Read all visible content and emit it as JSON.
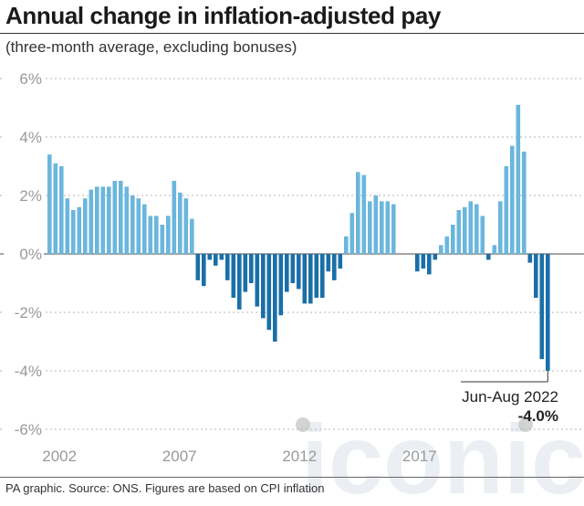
{
  "title": "Annual change in inflation-adjusted pay",
  "subtitle": "(three-month average, excluding bonuses)",
  "source": "PA graphic. Source: ONS. Figures are based on CPI inflation",
  "watermark": "iconic",
  "colors": {
    "positive": "#6bb6dc",
    "negative": "#1a6fa8",
    "gridline": "#b5b5b5",
    "zero_line": "#6d6d6d",
    "tick_text": "#999999",
    "watermark": "#dce3ea"
  },
  "chart_data": {
    "type": "bar",
    "title": "Annual change in inflation-adjusted pay",
    "subtitle": "(three-month average, excluding bonuses)",
    "xlabel": "",
    "ylabel": "",
    "ylim": [
      -6,
      6
    ],
    "y_ticks": [
      6,
      4,
      2,
      0,
      -2,
      -4,
      -6
    ],
    "y_tick_labels": [
      "6%",
      "4%",
      "2%",
      "0%",
      "-2%",
      "-4%",
      "-6%"
    ],
    "x_tick_labels": [
      "2002",
      "2007",
      "2012",
      "2017"
    ],
    "grid": true,
    "period_start": 2001.5,
    "period_end": 2022.5,
    "values": [
      3.4,
      3.1,
      3.0,
      1.9,
      1.5,
      1.6,
      1.9,
      2.2,
      2.3,
      2.3,
      2.3,
      2.5,
      2.5,
      2.3,
      2.0,
      1.9,
      1.7,
      1.3,
      1.3,
      1.0,
      1.3,
      2.5,
      2.1,
      1.9,
      1.2,
      -0.9,
      -1.1,
      -0.2,
      -0.4,
      -0.2,
      -0.9,
      -1.5,
      -1.9,
      -1.3,
      -1.0,
      -1.8,
      -2.2,
      -2.6,
      -3.0,
      -2.1,
      -1.3,
      -1.0,
      -1.2,
      -1.7,
      -1.7,
      -1.5,
      -1.5,
      -0.6,
      -0.9,
      -0.5,
      0.6,
      1.4,
      2.8,
      2.7,
      1.8,
      2.0,
      1.8,
      1.8,
      1.7,
      0.0,
      0.0,
      0.0,
      -0.6,
      -0.5,
      -0.7,
      -0.2,
      0.3,
      0.6,
      1.0,
      1.5,
      1.6,
      1.8,
      1.7,
      1.3,
      -0.2,
      0.3,
      1.8,
      3.0,
      3.7,
      5.1,
      3.5,
      -0.3,
      -1.5,
      -3.6,
      -4.0
    ],
    "annotation": {
      "label": "Jun-Aug 2022",
      "value": -4.0,
      "value_label": "-4.0%"
    }
  }
}
